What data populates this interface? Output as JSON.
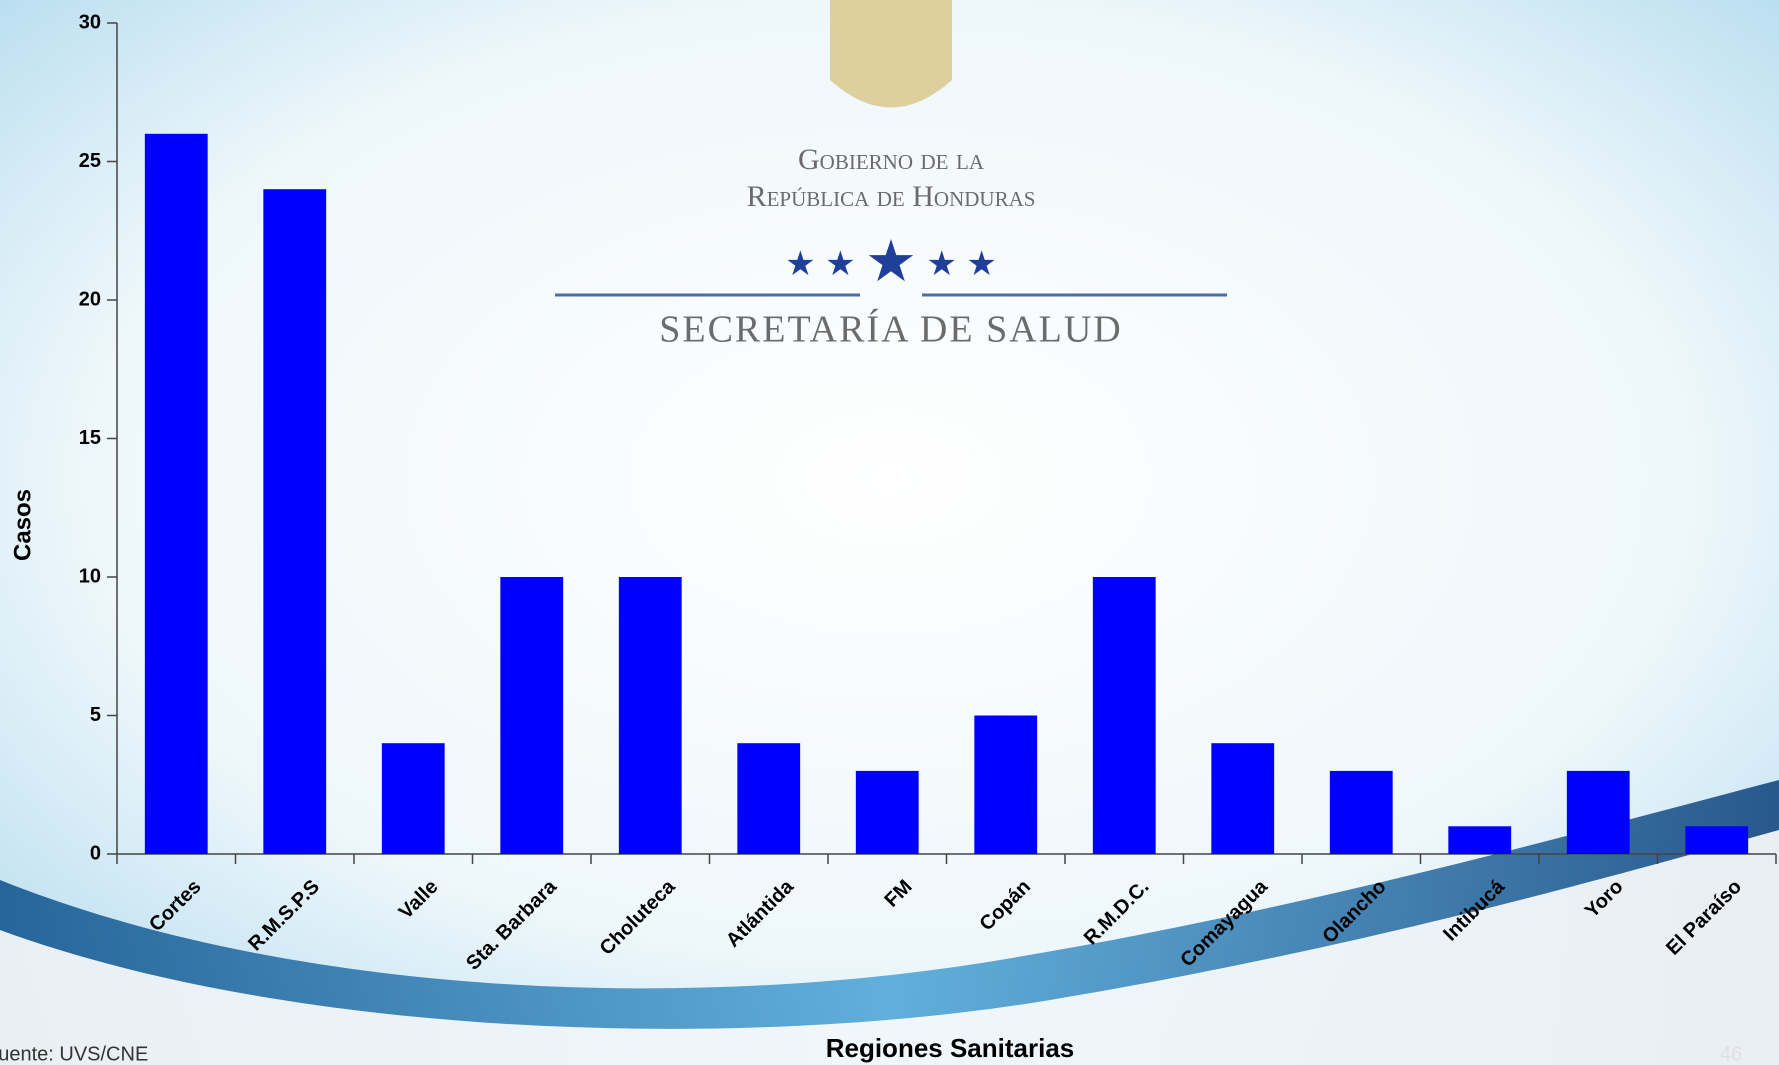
{
  "chart_data": {
    "type": "bar",
    "x_label": "Regiones Sanitarias",
    "y_label": "Casos",
    "categories": [
      "Cortes",
      "R.M.S.P.S",
      "Valle",
      "Sta. Barbara",
      "Choluteca",
      "Atlántida",
      "FM",
      "Copán",
      "R.M.D.C.",
      "Comayagua",
      "Olancho",
      "Intibucá",
      "Yoro",
      "El Paraíso"
    ],
    "values": [
      26,
      24,
      4,
      10,
      10,
      4,
      3,
      5,
      10,
      4,
      3,
      1,
      3,
      1
    ],
    "color": "#0000ff",
    "ylim": [
      0,
      30
    ],
    "yticks": [
      0,
      5,
      10,
      15,
      20,
      25,
      30
    ]
  },
  "logo": {
    "line1": "Gobierno de la",
    "line2": "República de Honduras",
    "line3": "Secretaría de Salud"
  },
  "footer": {
    "source": "Fuente: UVS/CNE",
    "page": "46"
  }
}
